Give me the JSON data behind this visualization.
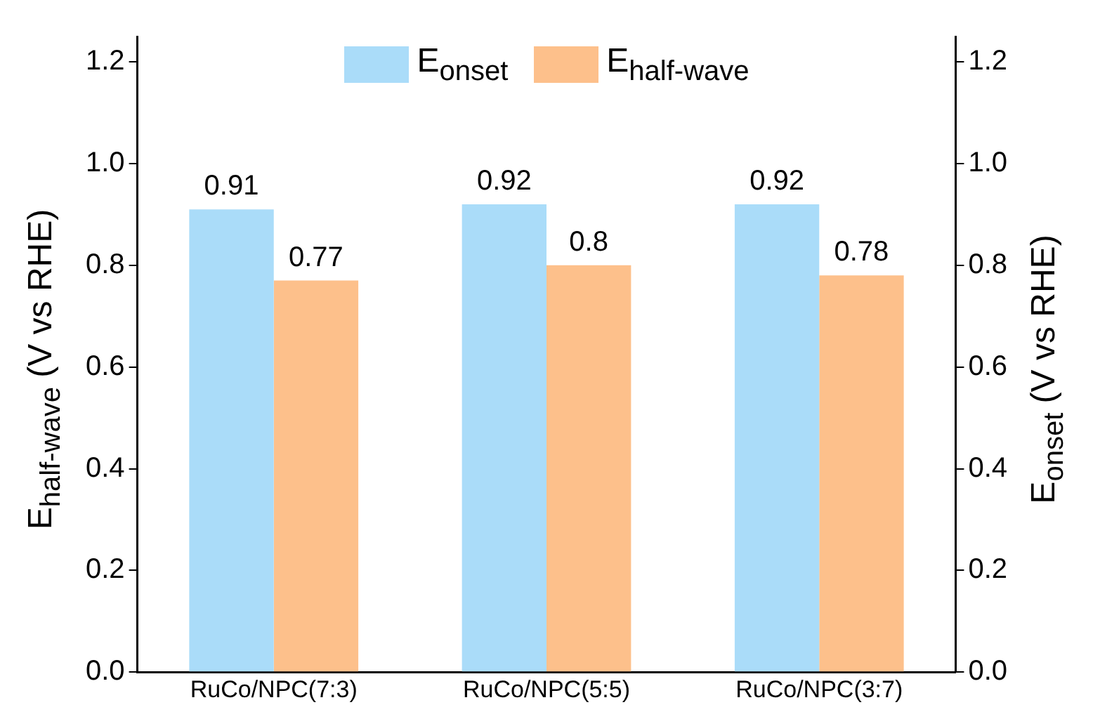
{
  "chart_data": {
    "type": "bar",
    "categories": [
      "RuCo/NPC(7:3)",
      "RuCo/NPC(5:5)",
      "RuCo/NPC(3:7)"
    ],
    "series": [
      {
        "name": "E$_{onset}$",
        "color": "#aadcf9",
        "values": [
          0.91,
          0.92,
          0.92
        ]
      },
      {
        "name": "E$_{half-wave}$",
        "color": "#fdc08b",
        "values": [
          0.77,
          0.8,
          0.78
        ]
      }
    ],
    "ylabel": "E$_{half-wave}$ (V vs RHE)",
    "y2label": "E$_{onset}$  (V vs RHE)",
    "ylim": [
      0,
      1.25
    ],
    "yticks": [
      {
        "value": 0,
        "label": "0.0"
      },
      0.2,
      0.4,
      0.6,
      0.8,
      {
        "value": 1,
        "label": "1.0"
      },
      1.2
    ],
    "y2lim": [
      0,
      1.25
    ],
    "y2ticks": [
      {
        "value": 0,
        "label": "0.0"
      },
      0.2,
      0.4,
      0.6,
      0.8,
      {
        "value": 1,
        "label": "1.0"
      },
      1.2
    ],
    "data_labels": true,
    "legend": "top",
    "grid": false
  }
}
